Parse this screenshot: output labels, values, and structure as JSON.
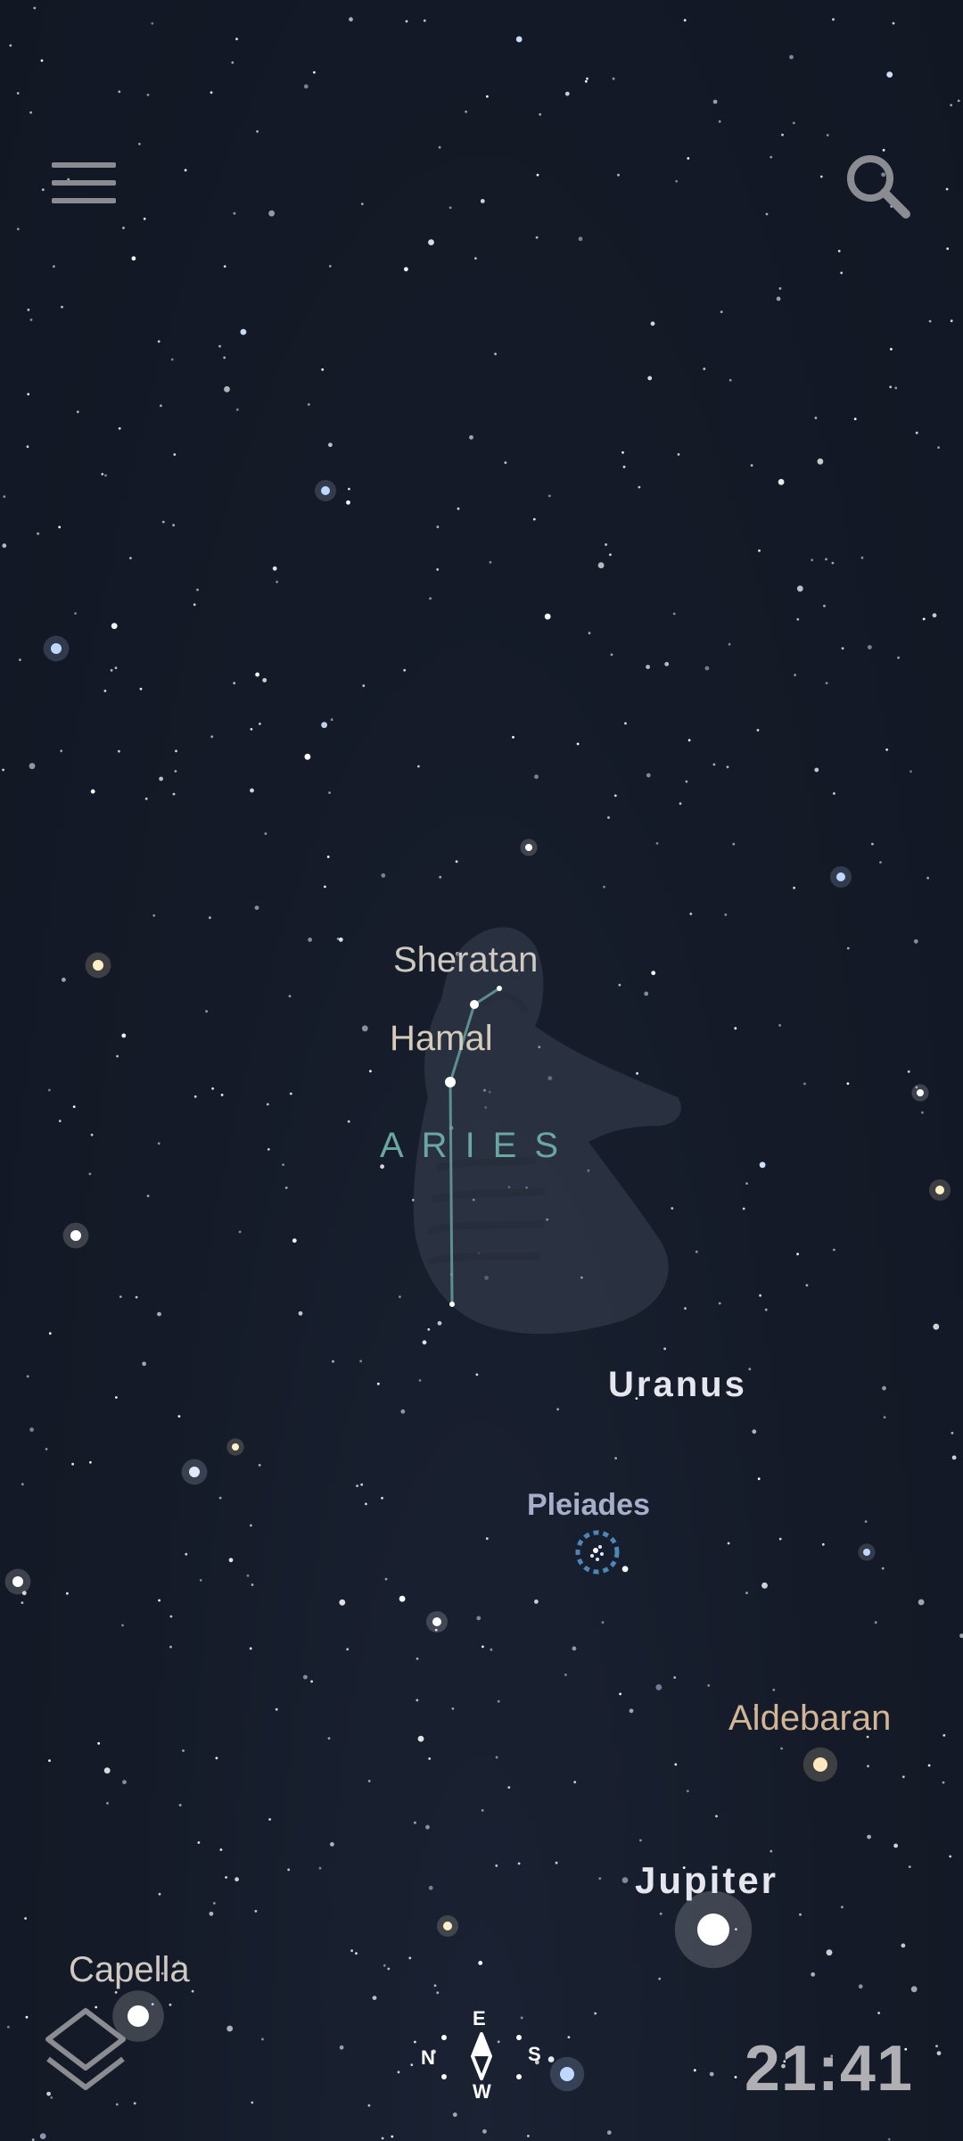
{
  "labels": {
    "sheratan": "Sheratan",
    "hamal": "Hamal",
    "aries": "ARIES",
    "uranus": "Uranus",
    "pleiades": "Pleiades",
    "aldebaran": "Aldebaran",
    "jupiter": "Jupiter",
    "capella": "Capella"
  },
  "compass": {
    "north": "N",
    "east": "E",
    "south": "S",
    "west": "W"
  },
  "clock": "21:41",
  "icons": {
    "menu": "hamburger-menu-icon",
    "search": "search-icon",
    "layers": "layers-icon",
    "compass": "compass-icon"
  },
  "colors": {
    "sky": "#151a27",
    "constellation_line": "#6aa7a3",
    "planet_label": "#e6e6ee",
    "star_label": "#cfc9c1",
    "aldebaran_label": "#d2b594",
    "cluster_label": "#a7aec9",
    "icon": "#8a8c92"
  }
}
